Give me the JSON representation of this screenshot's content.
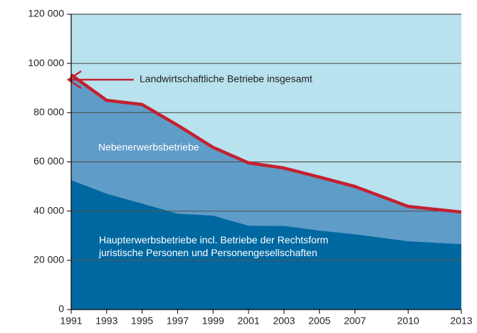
{
  "chart_data": {
    "type": "stacked_area_line",
    "x": [
      1991,
      1993,
      1995,
      1997,
      1999,
      2001,
      2003,
      2005,
      2007,
      2010,
      2013
    ],
    "series": [
      {
        "name": "Haupterwerbsbetriebe incl. Betriebe der Rechtsform juristische Personen und Personengesellschaften",
        "color": "#0068a0",
        "kind": "area",
        "values": [
          52600,
          47100,
          43100,
          39000,
          38200,
          34100,
          34000,
          32100,
          30600,
          27800,
          26600
        ]
      },
      {
        "name": "Nebenerwerbsbetriebe",
        "color": "#5f9cc8",
        "kind": "area",
        "values": [
          42800,
          37900,
          40200,
          35900,
          27700,
          25500,
          23500,
          21700,
          19400,
          14100,
          13000
        ]
      },
      {
        "name": "Landwirtschaftliche Betriebe insgesamt",
        "color": "#c42130",
        "kind": "line",
        "values": [
          95400,
          85000,
          83300,
          74900,
          65900,
          59600,
          57500,
          53800,
          50000,
          41900,
          39600
        ]
      }
    ],
    "background_color": "#b8e2ee",
    "xlim": [
      1991,
      2013
    ],
    "xticks": [
      1991,
      1993,
      1995,
      1997,
      1999,
      2001,
      2003,
      2005,
      2007,
      2010,
      2013
    ],
    "ylim": [
      0,
      120000
    ],
    "yticks": [
      0,
      {
        "value": 20000,
        "label": "20 000"
      },
      {
        "value": 40000,
        "label": "40 000"
      },
      {
        "value": 60000,
        "label": "60 000"
      },
      {
        "value": 80000,
        "label": "80 000"
      },
      {
        "value": 100000,
        "label": "100 000"
      },
      {
        "value": 120000,
        "label": "120 000"
      }
    ],
    "grid": true
  }
}
